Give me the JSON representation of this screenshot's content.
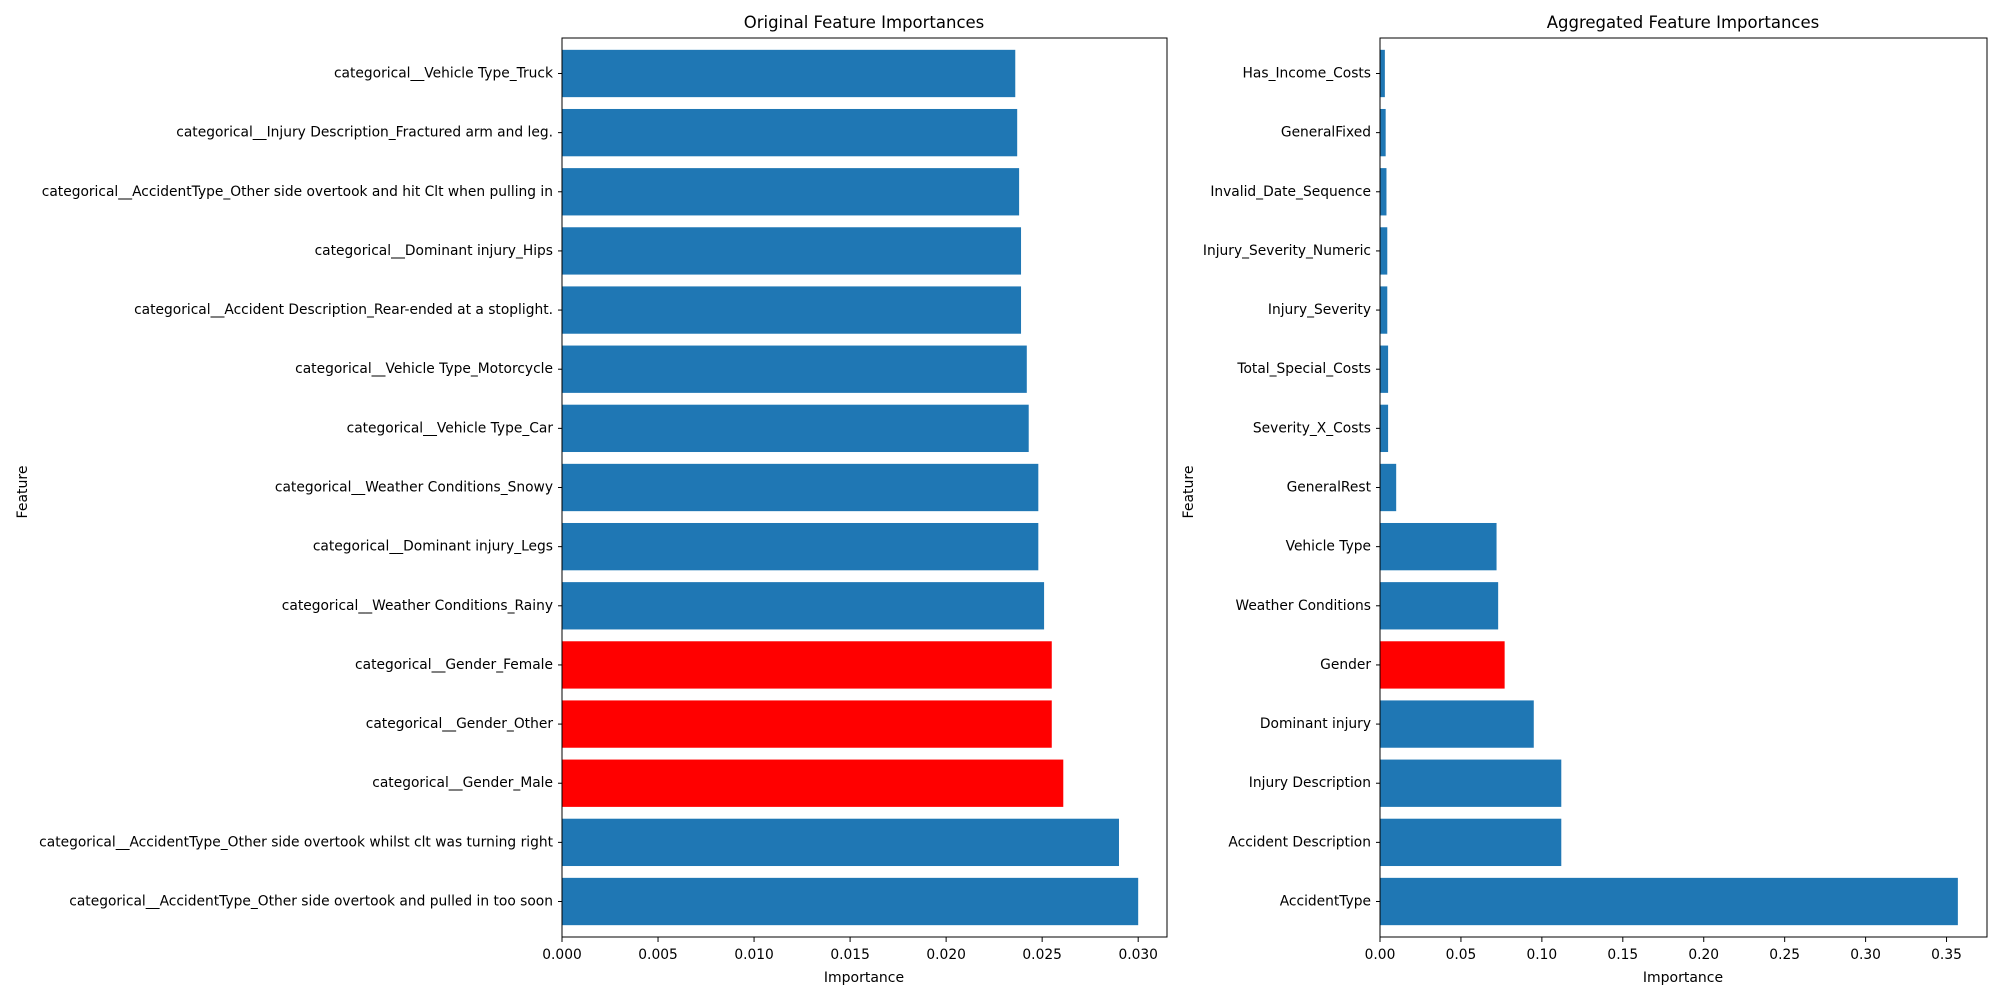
{
  "colors": {
    "default_bar": "#1f77b4",
    "highlight_bar": "#ff0000",
    "axes": "#000000",
    "background": "#ffffff"
  },
  "chart_data": [
    {
      "type": "bar",
      "orientation": "horizontal",
      "title": "Original Feature Importances",
      "xlabel": "Importance",
      "ylabel": "Feature",
      "xlim": [
        0,
        0.0315
      ],
      "xticks": [
        0.0,
        0.005,
        0.01,
        0.015,
        0.02,
        0.025,
        0.03
      ],
      "xtick_labels": [
        "0.000",
        "0.005",
        "0.010",
        "0.015",
        "0.020",
        "0.025",
        "0.030"
      ],
      "grid": false,
      "categories": [
        "categorical__AccidentType_Other side overtook and pulled in too soon",
        "categorical__AccidentType_Other side overtook whilst clt was turning right",
        "categorical__Gender_Male",
        "categorical__Gender_Other",
        "categorical__Gender_Female",
        "categorical__Weather Conditions_Rainy",
        "categorical__Dominant injury_Legs",
        "categorical__Weather Conditions_Snowy",
        "categorical__Vehicle Type_Car",
        "categorical__Vehicle Type_Motorcycle",
        "categorical__Accident Description_Rear-ended at a stoplight.",
        "categorical__Dominant injury_Hips",
        "categorical__AccidentType_Other side overtook and hit Clt when pulling in",
        "categorical__Injury Description_Fractured arm and leg.",
        "categorical__Vehicle Type_Truck"
      ],
      "values": [
        0.03,
        0.029,
        0.0261,
        0.0255,
        0.0255,
        0.0251,
        0.0248,
        0.0248,
        0.0243,
        0.0242,
        0.0239,
        0.0239,
        0.0238,
        0.0237,
        0.0236
      ],
      "highlighted": [
        false,
        false,
        true,
        true,
        true,
        false,
        false,
        false,
        false,
        false,
        false,
        false,
        false,
        false,
        false
      ]
    },
    {
      "type": "bar",
      "orientation": "horizontal",
      "title": "Aggregated Feature Importances",
      "xlabel": "Importance",
      "ylabel": "Feature",
      "xlim": [
        0,
        0.375
      ],
      "xticks": [
        0.0,
        0.05,
        0.1,
        0.15,
        0.2,
        0.25,
        0.3,
        0.35
      ],
      "xtick_labels": [
        "0.00",
        "0.05",
        "0.10",
        "0.15",
        "0.20",
        "0.25",
        "0.30",
        "0.35"
      ],
      "grid": false,
      "categories": [
        "AccidentType",
        "Accident Description",
        "Injury Description",
        "Dominant injury",
        "Gender",
        "Weather Conditions",
        "Vehicle Type",
        "GeneralRest",
        "Severity_X_Costs",
        "Total_Special_Costs",
        "Injury_Severity",
        "Injury_Severity_Numeric",
        "Invalid_Date_Sequence",
        "GeneralFixed",
        "Has_Income_Costs"
      ],
      "values": [
        0.357,
        0.112,
        0.112,
        0.095,
        0.077,
        0.073,
        0.072,
        0.01,
        0.005,
        0.005,
        0.0045,
        0.0045,
        0.004,
        0.0035,
        0.003
      ],
      "highlighted": [
        false,
        false,
        false,
        false,
        true,
        false,
        false,
        false,
        false,
        false,
        false,
        false,
        false,
        false,
        false
      ]
    }
  ]
}
